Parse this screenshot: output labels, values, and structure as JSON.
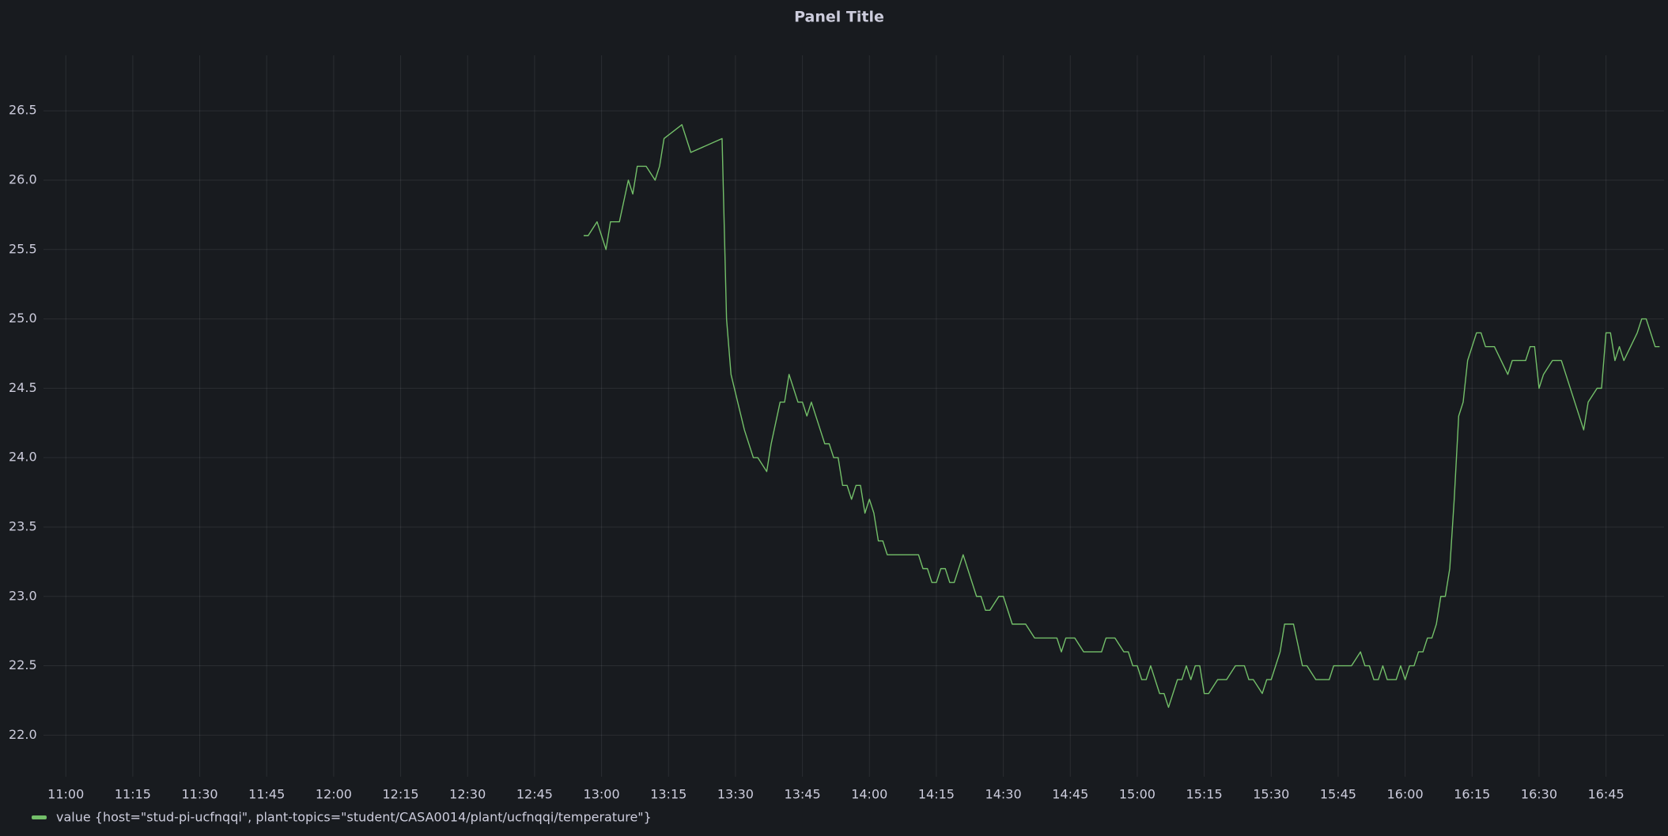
{
  "chart_data": {
    "type": "line",
    "title": "Panel Title",
    "x": [
      "12:56",
      "12:57",
      "12:59",
      "13:01",
      "13:02",
      "13:04",
      "13:06",
      "13:07",
      "13:08",
      "13:10",
      "13:12",
      "13:13",
      "13:14",
      "13:18",
      "13:20",
      "13:27",
      "13:28",
      "13:29",
      "13:32",
      "13:34",
      "13:35",
      "13:37",
      "13:38",
      "13:40",
      "13:41",
      "13:42",
      "13:44",
      "13:45",
      "13:46",
      "13:47",
      "13:49",
      "13:50",
      "13:51",
      "13:52",
      "13:53",
      "13:54",
      "13:55",
      "13:56",
      "13:57",
      "13:58",
      "13:59",
      "14:00",
      "14:01",
      "14:02",
      "14:03",
      "14:04",
      "14:11",
      "14:12",
      "14:13",
      "14:14",
      "14:15",
      "14:16",
      "14:17",
      "14:18",
      "14:19",
      "14:21",
      "14:24",
      "14:25",
      "14:26",
      "14:27",
      "14:29",
      "14:30",
      "14:32",
      "14:35",
      "14:37",
      "14:42",
      "14:43",
      "14:44",
      "14:46",
      "14:48",
      "14:52",
      "14:53",
      "14:55",
      "14:57",
      "14:58",
      "14:59",
      "15:00",
      "15:01",
      "15:02",
      "15:03",
      "15:05",
      "15:06",
      "15:07",
      "15:09",
      "15:10",
      "15:11",
      "15:12",
      "15:13",
      "15:14",
      "15:15",
      "15:16",
      "15:18",
      "15:20",
      "15:22",
      "15:24",
      "15:25",
      "15:26",
      "15:28",
      "15:29",
      "15:30",
      "15:32",
      "15:33",
      "15:35",
      "15:37",
      "15:38",
      "15:40",
      "15:43",
      "15:44",
      "15:48",
      "15:50",
      "15:51",
      "15:52",
      "15:53",
      "15:54",
      "15:55",
      "15:56",
      "15:58",
      "15:59",
      "16:00",
      "16:01",
      "16:02",
      "16:03",
      "16:04",
      "16:05",
      "16:06",
      "16:07",
      "16:08",
      "16:09",
      "16:10",
      "16:11",
      "16:12",
      "16:13",
      "16:14",
      "16:15",
      "16:16",
      "16:17",
      "16:18",
      "16:20",
      "16:23",
      "16:24",
      "16:27",
      "16:28",
      "16:29",
      "16:30",
      "16:31",
      "16:33",
      "16:35",
      "16:36",
      "16:38",
      "16:40",
      "16:41",
      "16:43",
      "16:44",
      "16:45",
      "16:46",
      "16:47",
      "16:48",
      "16:49",
      "16:52",
      "16:53",
      "16:54",
      "16:55",
      "16:56",
      "16:57"
    ],
    "series": [
      {
        "name": "value {host=\"stud-pi-ucfnqqi\", plant-topics=\"student/CASA0014/plant/ucfnqqi/temperature\"}",
        "color": "#73bf69",
        "values": [
          25.6,
          25.6,
          25.7,
          25.5,
          25.7,
          25.7,
          26.0,
          25.9,
          26.1,
          26.1,
          26.0,
          26.1,
          26.3,
          26.4,
          26.2,
          26.3,
          25.0,
          24.6,
          24.2,
          24.0,
          24.0,
          23.9,
          24.1,
          24.4,
          24.4,
          24.6,
          24.4,
          24.4,
          24.3,
          24.4,
          24.2,
          24.1,
          24.1,
          24.0,
          24.0,
          23.8,
          23.8,
          23.7,
          23.8,
          23.8,
          23.6,
          23.7,
          23.6,
          23.4,
          23.4,
          23.3,
          23.3,
          23.2,
          23.2,
          23.1,
          23.1,
          23.2,
          23.2,
          23.1,
          23.1,
          23.3,
          23.0,
          23.0,
          22.9,
          22.9,
          23.0,
          23.0,
          22.8,
          22.8,
          22.7,
          22.7,
          22.6,
          22.7,
          22.7,
          22.6,
          22.6,
          22.7,
          22.7,
          22.6,
          22.6,
          22.5,
          22.5,
          22.4,
          22.4,
          22.5,
          22.3,
          22.3,
          22.2,
          22.4,
          22.4,
          22.5,
          22.4,
          22.5,
          22.5,
          22.3,
          22.3,
          22.4,
          22.4,
          22.5,
          22.5,
          22.4,
          22.4,
          22.3,
          22.4,
          22.4,
          22.6,
          22.8,
          22.8,
          22.5,
          22.5,
          22.4,
          22.4,
          22.5,
          22.5,
          22.6,
          22.5,
          22.5,
          22.4,
          22.4,
          22.5,
          22.4,
          22.4,
          22.5,
          22.4,
          22.5,
          22.5,
          22.6,
          22.6,
          22.7,
          22.7,
          22.8,
          23.0,
          23.0,
          23.2,
          23.7,
          24.3,
          24.4,
          24.7,
          24.8,
          24.9,
          24.9,
          24.8,
          24.8,
          24.6,
          24.7,
          24.7,
          24.8,
          24.8,
          24.5,
          24.6,
          24.7,
          24.7,
          24.6,
          24.4,
          24.2,
          24.4,
          24.5,
          24.5,
          24.9,
          24.9,
          24.7,
          24.8,
          24.7,
          24.9,
          25.0,
          25.0,
          24.9,
          24.8,
          24.8
        ]
      }
    ],
    "xlim": [
      "10:55",
      "16:58"
    ],
    "xticks": [
      "11:00",
      "11:15",
      "11:30",
      "11:45",
      "12:00",
      "12:15",
      "12:30",
      "12:45",
      "13:00",
      "13:15",
      "13:30",
      "13:45",
      "14:00",
      "14:15",
      "14:30",
      "14:45",
      "15:00",
      "15:15",
      "15:30",
      "15:45",
      "16:00",
      "16:15",
      "16:30",
      "16:45"
    ],
    "ylim": [
      21.7,
      26.9
    ],
    "yticks": [
      {
        "value": 22,
        "label": "22.0"
      },
      {
        "value": 22.5,
        "label": "22.5"
      },
      {
        "value": 23,
        "label": "23.0"
      },
      {
        "value": 23.5,
        "label": "23.5"
      },
      {
        "value": 24,
        "label": "24.0"
      },
      {
        "value": 24.5,
        "label": "24.5"
      },
      {
        "value": 25,
        "label": "25.0"
      },
      {
        "value": 25.5,
        "label": "25.5"
      },
      {
        "value": 26,
        "label": "26.0"
      },
      {
        "value": 26.5,
        "label": "26.5"
      }
    ],
    "grid": true
  }
}
